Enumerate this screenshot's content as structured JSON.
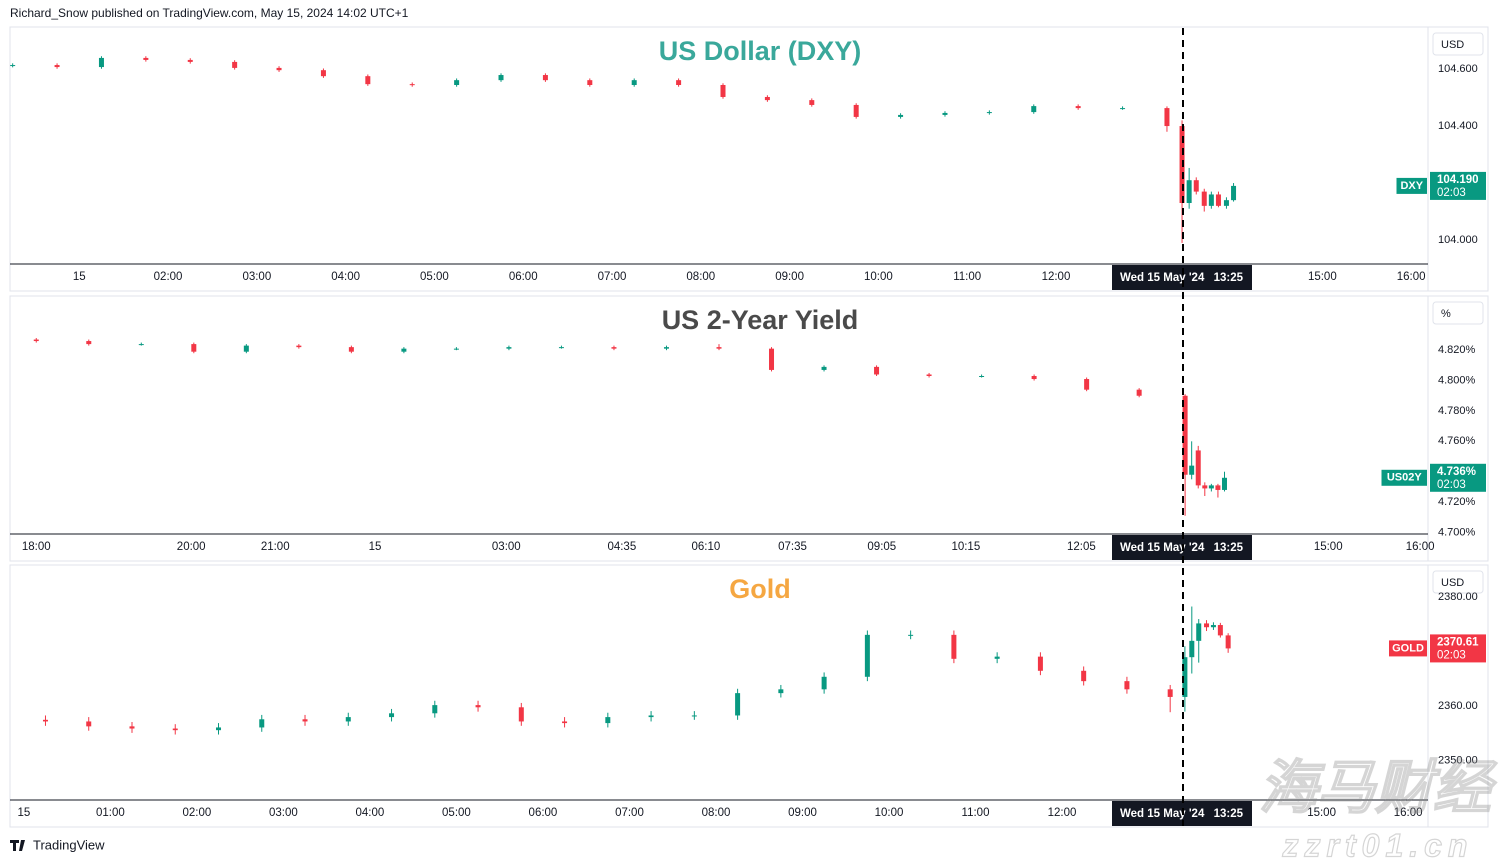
{
  "header": "Richard_Snow published on TradingView.com, May 15, 2024 14:02 UTC+1",
  "footer": "TradingView",
  "watermark": [
    "海马财经",
    "zzrt01.cn"
  ],
  "crosshair": {
    "date": "Wed 15 May '24",
    "time": "13:25"
  },
  "chart_data": [
    {
      "type": "candlestick",
      "title": "US Dollar (DXY)",
      "title_color": "#3aa89b",
      "unit": "USD",
      "up_color": "#089981",
      "down_color": "#f23645",
      "x": [
        0.25,
        0.75,
        1.25,
        1.75,
        2.25,
        2.75,
        3.25,
        3.75,
        4.25,
        4.75,
        5.25,
        5.75,
        6.25,
        6.75,
        7.25,
        7.75,
        8.25,
        8.75,
        9.25,
        9.75,
        10.25,
        10.75,
        11.25,
        11.75,
        12.25,
        12.75,
        13.25,
        13.42,
        13.5,
        13.58,
        13.67,
        13.75,
        13.83,
        13.92,
        14.0
      ],
      "open": [
        104.612,
        104.614,
        104.607,
        104.639,
        104.632,
        104.625,
        104.604,
        104.596,
        104.575,
        104.547,
        104.544,
        104.561,
        104.579,
        104.561,
        104.544,
        104.561,
        104.544,
        104.502,
        104.491,
        104.474,
        104.432,
        104.439,
        104.446,
        104.449,
        104.47,
        104.463,
        104.463,
        104.4,
        104.13,
        104.21,
        104.17,
        104.12,
        104.16,
        104.12,
        104.14
      ],
      "high": [
        104.62,
        104.62,
        104.645,
        104.645,
        104.638,
        104.631,
        104.61,
        104.602,
        104.581,
        104.553,
        104.567,
        104.585,
        104.585,
        104.567,
        104.567,
        104.567,
        104.55,
        104.508,
        104.497,
        104.48,
        104.445,
        104.452,
        104.455,
        104.476,
        104.476,
        104.469,
        104.469,
        104.42,
        104.253,
        104.22,
        104.18,
        104.17,
        104.17,
        104.15,
        104.2
      ],
      "low": [
        104.606,
        104.601,
        104.601,
        104.626,
        104.619,
        104.598,
        104.59,
        104.569,
        104.541,
        104.538,
        104.538,
        104.555,
        104.555,
        104.538,
        104.538,
        104.538,
        104.496,
        104.485,
        104.468,
        104.426,
        104.426,
        104.433,
        104.44,
        104.443,
        104.457,
        104.457,
        104.38,
        103.99,
        104.11,
        104.16,
        104.1,
        104.11,
        104.115,
        104.11,
        104.135
      ],
      "close": [
        104.614,
        104.607,
        104.639,
        104.632,
        104.625,
        104.604,
        104.596,
        104.575,
        104.547,
        104.544,
        104.561,
        104.579,
        104.561,
        104.544,
        104.561,
        104.544,
        104.502,
        104.491,
        104.474,
        104.432,
        104.439,
        104.446,
        104.449,
        104.47,
        104.463,
        104.463,
        104.4,
        104.13,
        104.21,
        104.17,
        104.12,
        104.16,
        104.12,
        104.14,
        104.19
      ],
      "xlim": [
        0.22,
        16.19
      ],
      "ylim": [
        103.916,
        104.744
      ],
      "xticks": [
        {
          "value": 1,
          "label": "15"
        },
        {
          "value": 2,
          "label": "02:00"
        },
        {
          "value": 3,
          "label": "03:00"
        },
        {
          "value": 4,
          "label": "04:00"
        },
        {
          "value": 5,
          "label": "05:00"
        },
        {
          "value": 6,
          "label": "06:00"
        },
        {
          "value": 7,
          "label": "07:00"
        },
        {
          "value": 8,
          "label": "08:00"
        },
        {
          "value": 9,
          "label": "09:00"
        },
        {
          "value": 10,
          "label": "10:00"
        },
        {
          "value": 11,
          "label": "11:00"
        },
        {
          "value": 12,
          "label": "12:00"
        },
        {
          "value": 15,
          "label": "15:00"
        },
        {
          "value": 16,
          "label": "16:00"
        }
      ],
      "yticks": [
        {
          "value": 104.6,
          "label": "104.600"
        },
        {
          "value": 104.4,
          "label": "104.400"
        },
        {
          "value": 104.0,
          "label": "104.000"
        }
      ],
      "last": {
        "symbol": "DXY",
        "value": 104.19,
        "label": "104.190",
        "countdown": "02:03",
        "color": "#089981"
      }
    },
    {
      "type": "candlestick",
      "title": "US 2-Year Yield",
      "title_color": "#4a4a4a",
      "unit": "%",
      "up_color": "#089981",
      "down_color": "#f23645",
      "x": [
        0,
        2,
        4,
        6,
        8,
        10,
        12,
        14,
        16,
        18,
        20,
        22,
        24,
        26,
        28,
        30,
        32,
        34,
        36,
        38,
        40,
        42,
        43.75,
        44.0,
        44.25,
        44.5,
        44.75,
        45.0,
        45.25
      ],
      "open": [
        4.827,
        4.826,
        4.824,
        4.824,
        4.819,
        4.823,
        4.822,
        4.819,
        4.821,
        4.821,
        4.822,
        4.822,
        4.821,
        4.822,
        4.821,
        4.807,
        4.809,
        4.804,
        4.803,
        4.803,
        4.801,
        4.794,
        4.79,
        4.738,
        4.754,
        4.731,
        4.729,
        4.731,
        4.728
      ],
      "high": [
        4.828,
        4.827,
        4.825,
        4.825,
        4.824,
        4.824,
        4.823,
        4.822,
        4.822,
        4.823,
        4.823,
        4.823,
        4.823,
        4.824,
        4.822,
        4.81,
        4.81,
        4.805,
        4.804,
        4.804,
        4.802,
        4.795,
        4.791,
        4.76,
        4.757,
        4.733,
        4.732,
        4.732,
        4.74
      ],
      "low": [
        4.825,
        4.823,
        4.823,
        4.818,
        4.818,
        4.821,
        4.818,
        4.818,
        4.82,
        4.82,
        4.821,
        4.82,
        4.82,
        4.82,
        4.806,
        4.806,
        4.803,
        4.802,
        4.802,
        4.8,
        4.793,
        4.789,
        4.711,
        4.735,
        4.729,
        4.724,
        4.727,
        4.723,
        4.727
      ],
      "close": [
        4.826,
        4.824,
        4.824,
        4.819,
        4.823,
        4.822,
        4.819,
        4.821,
        4.821,
        4.822,
        4.822,
        4.821,
        4.822,
        4.821,
        4.807,
        4.809,
        4.804,
        4.803,
        4.803,
        4.801,
        4.794,
        4.79,
        4.738,
        4.744,
        4.731,
        4.729,
        4.731,
        4.728,
        4.736
      ],
      "xlim": [
        -1,
        53
      ],
      "ylim": [
        4.699,
        4.855
      ],
      "xticks": [
        {
          "value": 0,
          "label": "18:00"
        },
        {
          "value": 5.9,
          "label": "20:00"
        },
        {
          "value": 9.1,
          "label": "21:00"
        },
        {
          "value": 12.9,
          "label": "15"
        },
        {
          "value": 17.9,
          "label": "03:00"
        },
        {
          "value": 22.3,
          "label": "04:35"
        },
        {
          "value": 25.5,
          "label": "06:10"
        },
        {
          "value": 28.8,
          "label": "07:35"
        },
        {
          "value": 32.2,
          "label": "09:05"
        },
        {
          "value": 35.4,
          "label": "10:15"
        },
        {
          "value": 39.8,
          "label": "12:05"
        },
        {
          "value": 49.2,
          "label": "15:00"
        },
        {
          "value": 52.7,
          "label": "16:00"
        }
      ],
      "yticks": [
        {
          "value": 4.82,
          "label": "4.820%"
        },
        {
          "value": 4.8,
          "label": "4.800%"
        },
        {
          "value": 4.78,
          "label": "4.780%"
        },
        {
          "value": 4.76,
          "label": "4.760%"
        },
        {
          "value": 4.72,
          "label": "4.720%"
        },
        {
          "value": 4.7,
          "label": "4.700%"
        }
      ],
      "last": {
        "symbol": "US02Y",
        "value": 4.736,
        "label": "4.736%",
        "countdown": "02:03",
        "color": "#089981"
      }
    },
    {
      "type": "candlestick",
      "title": "Gold",
      "title_color": "#f5a742",
      "unit": "USD",
      "up_color": "#089981",
      "down_color": "#f23645",
      "x": [
        0.25,
        0.75,
        1.25,
        1.75,
        2.25,
        2.75,
        3.25,
        3.75,
        4.25,
        4.75,
        5.25,
        5.75,
        6.25,
        6.75,
        7.25,
        7.75,
        8.25,
        8.75,
        9.25,
        9.75,
        10.25,
        10.75,
        11.25,
        11.75,
        12.25,
        12.75,
        13.25,
        13.42,
        13.5,
        13.58,
        13.67,
        13.75,
        13.83,
        13.92
      ],
      "open": [
        2357.5,
        2357.2,
        2356.3,
        2355.9,
        2355.6,
        2356.1,
        2357.6,
        2357.2,
        2358.0,
        2358.7,
        2360.2,
        2359.8,
        2357.2,
        2356.9,
        2358.0,
        2358.3,
        2358.3,
        2362.4,
        2363.1,
        2365.4,
        2373.1,
        2373.1,
        2368.7,
        2369.1,
        2366.5,
        2364.6,
        2363.1,
        2361.7,
        2369.0,
        2372.0,
        2375.2,
        2374.5,
        2374.9,
        2373.0
      ],
      "high": [
        2358.3,
        2358.0,
        2357.1,
        2356.7,
        2356.9,
        2358.4,
        2358.4,
        2358.8,
        2359.5,
        2361.0,
        2361.0,
        2360.6,
        2358.0,
        2358.8,
        2359.1,
        2359.1,
        2363.2,
        2363.9,
        2366.2,
        2373.9,
        2373.9,
        2373.9,
        2369.9,
        2369.9,
        2367.3,
        2365.4,
        2363.9,
        2371.0,
        2378.3,
        2376.0,
        2375.8,
        2375.4,
        2375.3,
        2373.4
      ],
      "low": [
        2356.4,
        2355.5,
        2355.1,
        2354.8,
        2354.8,
        2355.3,
        2356.4,
        2356.4,
        2357.2,
        2357.9,
        2359.0,
        2356.4,
        2356.1,
        2356.1,
        2357.2,
        2357.5,
        2357.5,
        2361.6,
        2362.3,
        2364.6,
        2372.3,
        2367.9,
        2367.9,
        2365.7,
        2363.8,
        2362.3,
        2358.9,
        2359.0,
        2366.0,
        2368.0,
        2373.8,
        2374.0,
        2372.6,
        2369.8
      ],
      "close": [
        2357.2,
        2356.3,
        2355.9,
        2355.6,
        2356.1,
        2357.6,
        2357.2,
        2358.0,
        2358.7,
        2360.2,
        2359.8,
        2357.2,
        2356.9,
        2358.0,
        2358.3,
        2358.3,
        2362.4,
        2363.1,
        2365.4,
        2373.1,
        2373.1,
        2368.7,
        2369.1,
        2366.5,
        2364.6,
        2363.1,
        2361.7,
        2369.0,
        2372.0,
        2375.2,
        2374.5,
        2374.9,
        2373.0,
        2370.61
      ],
      "xlim": [
        -0.16,
        16.23
      ],
      "ylim": [
        2342.78,
        2385.74
      ],
      "xticks": [
        {
          "value": 0,
          "label": "15"
        },
        {
          "value": 1,
          "label": "01:00"
        },
        {
          "value": 2,
          "label": "02:00"
        },
        {
          "value": 3,
          "label": "03:00"
        },
        {
          "value": 4,
          "label": "04:00"
        },
        {
          "value": 5,
          "label": "05:00"
        },
        {
          "value": 6,
          "label": "06:00"
        },
        {
          "value": 7,
          "label": "07:00"
        },
        {
          "value": 8,
          "label": "08:00"
        },
        {
          "value": 9,
          "label": "09:00"
        },
        {
          "value": 10,
          "label": "10:00"
        },
        {
          "value": 11,
          "label": "11:00"
        },
        {
          "value": 12,
          "label": "12:00"
        },
        {
          "value": 15,
          "label": "15:00"
        },
        {
          "value": 16,
          "label": "16:00"
        }
      ],
      "yticks": [
        {
          "value": 2380,
          "label": "2380.00"
        },
        {
          "value": 2360,
          "label": "2360.00"
        },
        {
          "value": 2350,
          "label": "2350.00"
        }
      ],
      "last": {
        "symbol": "GOLD",
        "value": 2370.61,
        "label": "2370.61",
        "countdown": "02:03",
        "color": "#f23645"
      }
    }
  ]
}
